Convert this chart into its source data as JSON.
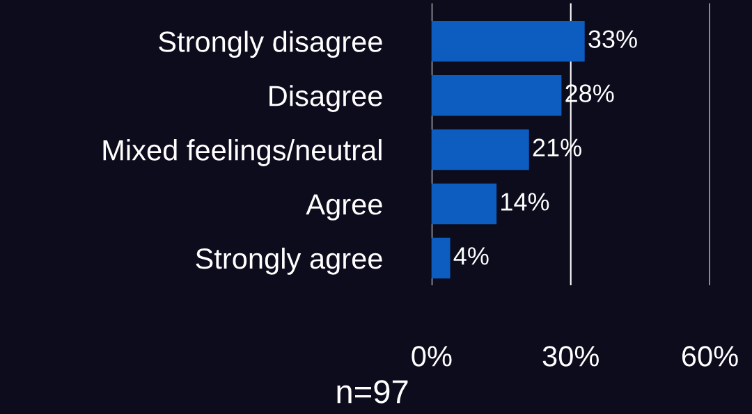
{
  "chart_data": {
    "type": "bar",
    "orientation": "horizontal",
    "categories": [
      "Strongly disagree",
      "Disagree",
      "Mixed feelings/neutral",
      "Agree",
      "Strongly agree"
    ],
    "values": [
      33,
      28,
      21,
      14,
      4
    ],
    "value_labels": [
      "33%",
      "28%",
      "21%",
      "14%",
      "4%"
    ],
    "color": "#0d5cbf",
    "xlim": [
      0,
      60
    ],
    "xticks": [
      {
        "value": 0,
        "label": "0%"
      },
      {
        "value": 30,
        "label": "30%"
      },
      {
        "value": 60,
        "label": "60%"
      }
    ],
    "grid": "x",
    "annotations": [
      "n=97"
    ]
  }
}
